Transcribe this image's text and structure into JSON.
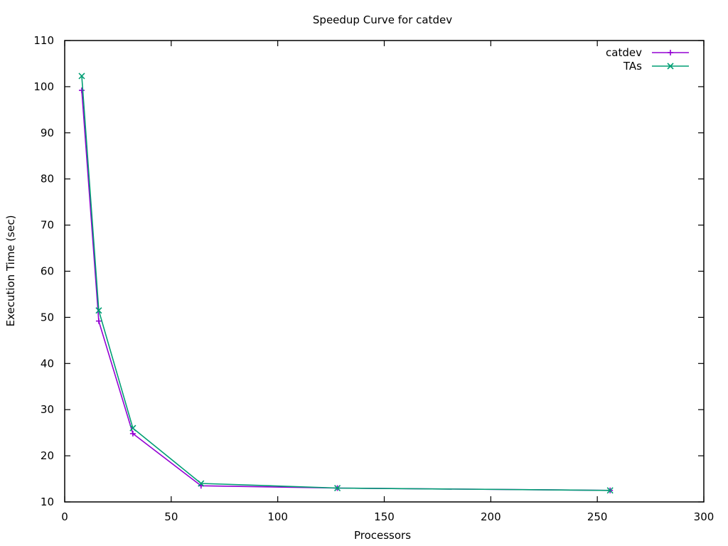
{
  "chart_data": {
    "type": "line",
    "title": "Speedup Curve for catdev",
    "xlabel": "Processors",
    "ylabel": "Execution Time (sec)",
    "xlim": [
      0,
      300
    ],
    "ylim": [
      10,
      110
    ],
    "xticks": [
      0,
      50,
      100,
      150,
      200,
      250,
      300
    ],
    "yticks": [
      10,
      20,
      30,
      40,
      50,
      60,
      70,
      80,
      90,
      100,
      110
    ],
    "grid": false,
    "legend_position": "top-right",
    "series": [
      {
        "name": "catdev",
        "color": "#9400d3",
        "marker": "plus",
        "x": [
          8,
          16,
          32,
          64,
          128,
          256
        ],
        "y": [
          99.2,
          49.2,
          24.8,
          13.5,
          13.0,
          12.5
        ]
      },
      {
        "name": "TAs",
        "color": "#009e73",
        "marker": "cross",
        "x": [
          8,
          16,
          32,
          64,
          128,
          256
        ],
        "y": [
          102.3,
          51.5,
          26.0,
          14.0,
          13.0,
          12.5
        ]
      }
    ]
  }
}
